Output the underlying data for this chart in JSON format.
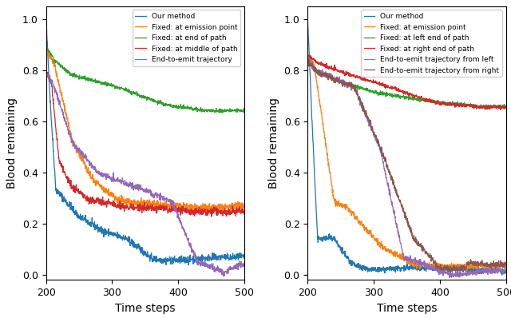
{
  "xlim": [
    200,
    500
  ],
  "ylim": [
    -0.02,
    1.05
  ],
  "xlabel": "Time steps",
  "ylabel": "Blood remaining",
  "xticks": [
    200,
    300,
    400,
    500
  ],
  "yticks": [
    0.0,
    0.2,
    0.4,
    0.6,
    0.8,
    1.0
  ],
  "left_legend": [
    {
      "label": "Our method",
      "color": "#1f77b4"
    },
    {
      "label": "Fixed: at emission point",
      "color": "#ff7f0e"
    },
    {
      "label": "Fixed: at end of path",
      "color": "#2ca02c"
    },
    {
      "label": "Fixed: at middle of path",
      "color": "#d62728"
    },
    {
      "label": "End-to-emit trajectory",
      "color": "#9467bd"
    }
  ],
  "right_legend": [
    {
      "label": "Our method",
      "color": "#1f77b4"
    },
    {
      "label": "Fixed: at emission point",
      "color": "#ff7f0e"
    },
    {
      "label": "Fixed: at left end of path",
      "color": "#2ca02c"
    },
    {
      "label": "Fixed: at right end of path",
      "color": "#d62728"
    },
    {
      "label": "End-to-emit trajectory from left",
      "color": "#9467bd"
    },
    {
      "label": "End-to-emit trajectory from right",
      "color": "#8c564b"
    }
  ],
  "noise_scale": 0.006,
  "seed": 42
}
